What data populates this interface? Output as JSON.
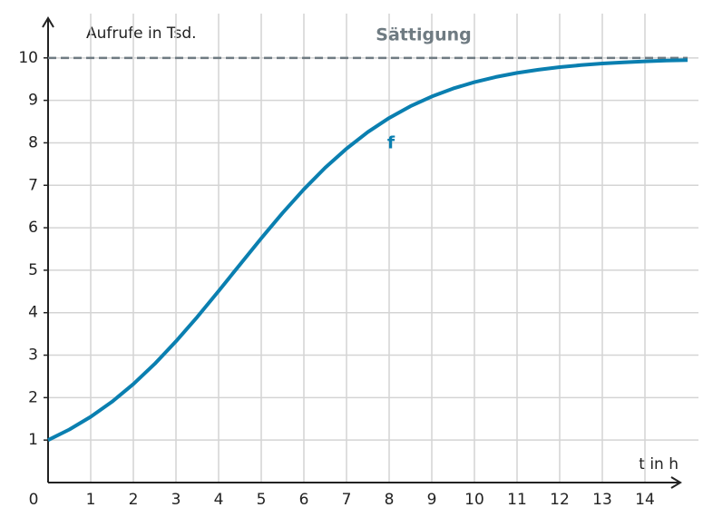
{
  "chart_data": {
    "type": "line",
    "y_label": "Aufrufe in Tsd.",
    "x_label": "t in h",
    "x": [
      0,
      0.5,
      1,
      1.5,
      2,
      2.5,
      3,
      3.5,
      4,
      4.5,
      5,
      5.5,
      6,
      6.5,
      7,
      7.5,
      8,
      8.5,
      9,
      9.5,
      10,
      10.5,
      11,
      11.5,
      12,
      12.5,
      13,
      13.5,
      14,
      14.5,
      15
    ],
    "series": [
      {
        "name": "f",
        "color": "#0a7fb0",
        "values": [
          1.0,
          1.249,
          1.548,
          1.904,
          2.32,
          2.794,
          3.325,
          3.9,
          4.509,
          5.132,
          5.751,
          6.348,
          6.906,
          7.413,
          7.863,
          8.253,
          8.585,
          8.862,
          9.091,
          9.278,
          9.428,
          9.549,
          9.645,
          9.721,
          9.782,
          9.829,
          9.867,
          9.896,
          9.919,
          9.937,
          9.95
        ]
      }
    ],
    "saturation": {
      "label": "Sättigung",
      "value": 10,
      "color": "#6f7b82"
    },
    "xlim": [
      0,
      15
    ],
    "ylim": [
      0,
      11
    ],
    "xticks": [
      0,
      1,
      2,
      3,
      4,
      5,
      6,
      7,
      8,
      9,
      10,
      11,
      12,
      13,
      14
    ],
    "yticks": [
      1,
      2,
      3,
      4,
      5,
      6,
      7,
      8,
      9,
      10
    ],
    "grid": true
  }
}
